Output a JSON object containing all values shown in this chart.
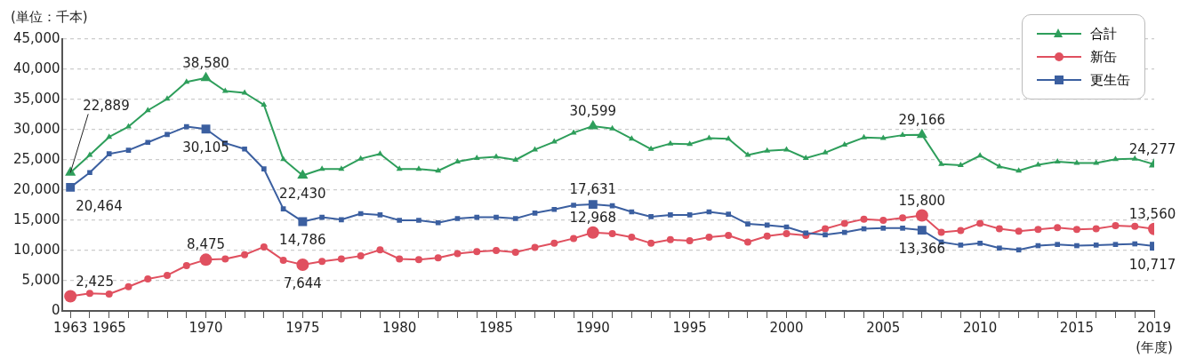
{
  "chart_data": {
    "type": "line",
    "ylabel": "(単位：千本)",
    "xlabel": "(年度)",
    "x": [
      1963,
      1964,
      1965,
      1966,
      1967,
      1968,
      1969,
      1970,
      1971,
      1972,
      1973,
      1974,
      1975,
      1976,
      1977,
      1978,
      1979,
      1980,
      1981,
      1982,
      1983,
      1984,
      1985,
      1986,
      1987,
      1988,
      1989,
      1990,
      1991,
      1992,
      1993,
      1994,
      1995,
      1996,
      1997,
      1998,
      1999,
      2000,
      2001,
      2002,
      2003,
      2004,
      2005,
      2006,
      2007,
      2008,
      2009,
      2010,
      2011,
      2012,
      2013,
      2014,
      2015,
      2016,
      2017,
      2018,
      2019
    ],
    "xlim": [
      1962.6,
      2019
    ],
    "xticks": [
      1963,
      {
        "value": 1964,
        "label": null
      },
      1965,
      {
        "value": 1966,
        "label": null
      },
      {
        "value": 1967,
        "label": null
      },
      {
        "value": 1968,
        "label": null
      },
      {
        "value": 1969,
        "label": null
      },
      1970,
      {
        "value": 1971,
        "label": null
      },
      {
        "value": 1972,
        "label": null
      },
      {
        "value": 1973,
        "label": null
      },
      {
        "value": 1974,
        "label": null
      },
      1975,
      {
        "value": 1976,
        "label": null
      },
      {
        "value": 1977,
        "label": null
      },
      {
        "value": 1978,
        "label": null
      },
      {
        "value": 1979,
        "label": null
      },
      1980,
      {
        "value": 1981,
        "label": null
      },
      {
        "value": 1982,
        "label": null
      },
      {
        "value": 1983,
        "label": null
      },
      {
        "value": 1984,
        "label": null
      },
      1985,
      {
        "value": 1986,
        "label": null
      },
      {
        "value": 1987,
        "label": null
      },
      {
        "value": 1988,
        "label": null
      },
      {
        "value": 1989,
        "label": null
      },
      1990,
      {
        "value": 1991,
        "label": null
      },
      {
        "value": 1992,
        "label": null
      },
      {
        "value": 1993,
        "label": null
      },
      {
        "value": 1994,
        "label": null
      },
      1995,
      {
        "value": 1996,
        "label": null
      },
      {
        "value": 1997,
        "label": null
      },
      {
        "value": 1998,
        "label": null
      },
      {
        "value": 1999,
        "label": null
      },
      2000,
      {
        "value": 2001,
        "label": null
      },
      {
        "value": 2002,
        "label": null
      },
      {
        "value": 2003,
        "label": null
      },
      {
        "value": 2004,
        "label": null
      },
      2005,
      {
        "value": 2006,
        "label": null
      },
      {
        "value": 2007,
        "label": null
      },
      {
        "value": 2008,
        "label": null
      },
      {
        "value": 2009,
        "label": null
      },
      2010,
      {
        "value": 2011,
        "label": null
      },
      {
        "value": 2012,
        "label": null
      },
      {
        "value": 2013,
        "label": null
      },
      {
        "value": 2014,
        "label": null
      },
      2015,
      {
        "value": 2016,
        "label": null
      },
      {
        "value": 2017,
        "label": null
      },
      {
        "value": 2018,
        "label": null
      },
      2019
    ],
    "ylim": [
      0,
      45000
    ],
    "yticks": [
      {
        "value": 0,
        "label": "0"
      },
      {
        "value": 5000,
        "label": "5,000"
      },
      {
        "value": 10000,
        "label": "10,000"
      },
      {
        "value": 15000,
        "label": "15,000"
      },
      {
        "value": 20000,
        "label": "20,000"
      },
      {
        "value": 25000,
        "label": "25,000"
      },
      {
        "value": 30000,
        "label": "30,000"
      },
      {
        "value": 35000,
        "label": "35,000"
      },
      {
        "value": 40000,
        "label": "40,000"
      },
      {
        "value": 45000,
        "label": "45,000"
      }
    ],
    "grid": "y",
    "legend": "top right",
    "line_style": "solid",
    "series": [
      {
        "name": "合計",
        "color": "#2e9e5b",
        "marker": "triangle",
        "values": [
          22889,
          25800,
          28800,
          30500,
          33200,
          35100,
          37900,
          38580,
          36400,
          36100,
          34100,
          25100,
          22430,
          23500,
          23500,
          25200,
          26000,
          23500,
          23500,
          23200,
          24700,
          25300,
          25500,
          25000,
          26700,
          28000,
          29500,
          30599,
          30200,
          28500,
          26800,
          27700,
          27600,
          28600,
          28500,
          25800,
          26500,
          26700,
          25300,
          26200,
          27500,
          28700,
          28600,
          29100,
          29166,
          24300,
          24100,
          25700,
          23900,
          23200,
          24200,
          24700,
          24500,
          24500,
          25100,
          25200,
          24277
        ],
        "value_labels": [
          "22,889",
          null,
          null,
          null,
          null,
          null,
          null,
          "38,580",
          null,
          null,
          null,
          null,
          "22,430",
          null,
          null,
          null,
          null,
          null,
          null,
          null,
          null,
          null,
          null,
          null,
          null,
          null,
          null,
          "30,599",
          null,
          null,
          null,
          null,
          null,
          null,
          null,
          null,
          null,
          null,
          null,
          null,
          null,
          null,
          null,
          null,
          "29,166",
          null,
          null,
          null,
          null,
          null,
          null,
          null,
          null,
          null,
          null,
          null,
          "24,277"
        ]
      },
      {
        "name": "新缶",
        "color": "#e0505f",
        "marker": "circle",
        "values": [
          2425,
          2900,
          2800,
          4000,
          5300,
          5900,
          7500,
          8475,
          8600,
          9300,
          10600,
          8400,
          7644,
          8200,
          8600,
          9100,
          10100,
          8600,
          8500,
          8800,
          9500,
          9800,
          10000,
          9700,
          10500,
          11200,
          12000,
          12968,
          12800,
          12200,
          11200,
          11800,
          11600,
          12200,
          12500,
          11400,
          12400,
          12800,
          12500,
          13600,
          14500,
          15200,
          15000,
          15400,
          15800,
          13000,
          13300,
          14500,
          13600,
          13200,
          13500,
          13800,
          13500,
          13600,
          14100,
          14000,
          13560
        ],
        "value_labels": [
          "2,425",
          null,
          null,
          null,
          null,
          null,
          null,
          "8,475",
          null,
          null,
          null,
          null,
          "7,644",
          null,
          null,
          null,
          null,
          null,
          null,
          null,
          null,
          null,
          null,
          null,
          null,
          null,
          null,
          "12,968",
          null,
          null,
          null,
          null,
          null,
          null,
          null,
          null,
          null,
          null,
          null,
          null,
          null,
          null,
          null,
          null,
          "15,800",
          null,
          null,
          null,
          null,
          null,
          null,
          null,
          null,
          null,
          null,
          null,
          "13,560"
        ]
      },
      {
        "name": "更生缶",
        "color": "#3b5fa0",
        "marker": "square",
        "values": [
          20464,
          22900,
          26000,
          26600,
          27900,
          29200,
          30500,
          30105,
          27800,
          26800,
          23500,
          16900,
          14786,
          15500,
          15100,
          16100,
          15900,
          15000,
          15000,
          14600,
          15300,
          15500,
          15500,
          15300,
          16200,
          16800,
          17500,
          17631,
          17400,
          16400,
          15600,
          15900,
          15900,
          16400,
          16000,
          14400,
          14200,
          13900,
          12900,
          12600,
          13000,
          13600,
          13700,
          13700,
          13366,
          11400,
          10900,
          11200,
          10400,
          10100,
          10800,
          11000,
          10800,
          10900,
          11000,
          11100,
          10717
        ],
        "value_labels": [
          "20,464",
          null,
          null,
          null,
          null,
          null,
          null,
          "30,105",
          null,
          null,
          null,
          null,
          "14,786",
          null,
          null,
          null,
          null,
          null,
          null,
          null,
          null,
          null,
          null,
          null,
          null,
          null,
          null,
          "17,631",
          null,
          null,
          null,
          null,
          null,
          null,
          null,
          null,
          null,
          null,
          null,
          null,
          null,
          null,
          null,
          null,
          "13,366",
          null,
          null,
          null,
          null,
          null,
          null,
          null,
          null,
          null,
          null,
          null,
          "10,717"
        ]
      }
    ]
  }
}
